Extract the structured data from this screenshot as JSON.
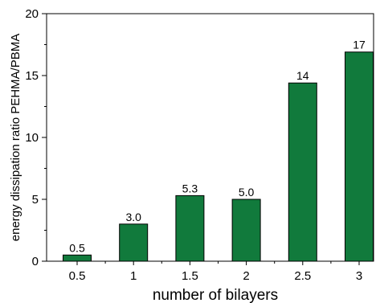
{
  "chart_data": {
    "type": "bar",
    "categories": [
      "0.5",
      "1",
      "1.5",
      "2",
      "2.5",
      "3"
    ],
    "values": [
      0.5,
      3.0,
      5.3,
      5.0,
      14.4,
      16.9
    ],
    "data_labels": [
      "0.5",
      "3.0",
      "5.3",
      "5.0",
      "14",
      "17"
    ],
    "xlabel": "number of bilayers",
    "ylabel": "energy dissipation ratio PEHMA/PBMA",
    "ylim": [
      0,
      20
    ],
    "yticks": [
      "0",
      "5",
      "10",
      "15",
      "20"
    ],
    "grid": false,
    "legend": "none",
    "bar_color": "#117a3c"
  }
}
